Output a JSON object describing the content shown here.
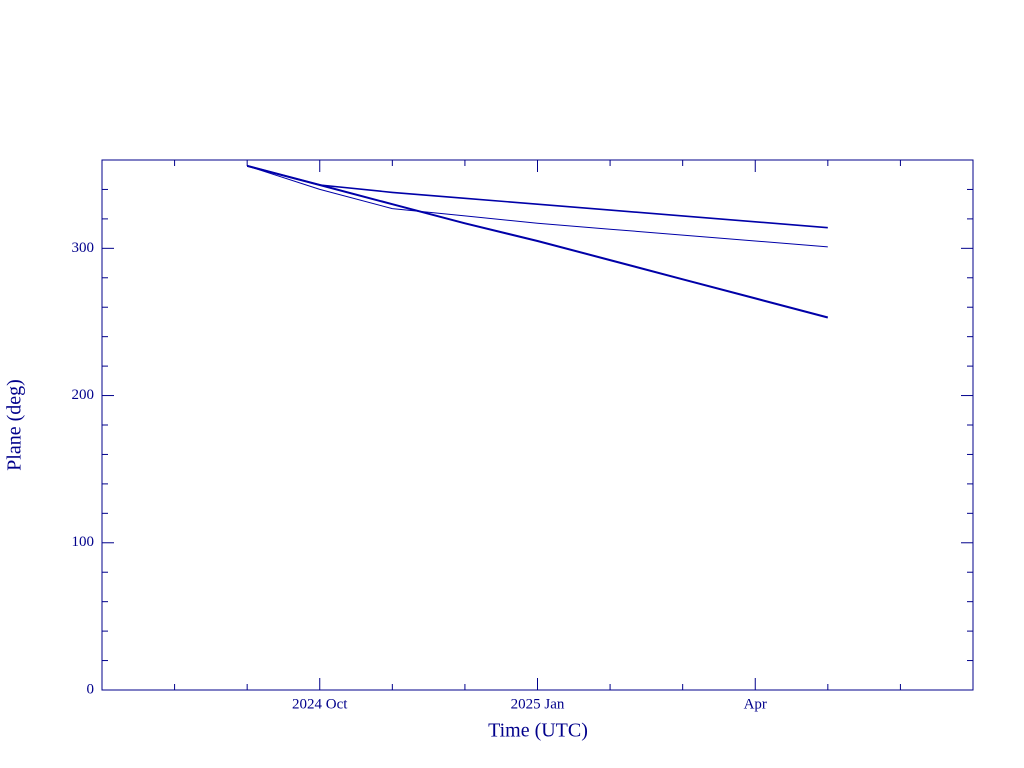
{
  "chart_data": {
    "type": "line",
    "x_label": "Time (UTC)",
    "y_label": "Plane (deg)",
    "x": [
      "2024-09",
      "2024-10",
      "2024-11",
      "2024-12",
      "2025-01",
      "2025-02",
      "2025-03",
      "2025-04",
      "2025-05"
    ],
    "series": [
      {
        "color": "#0000a8",
        "width": 2,
        "values": [
          356,
          343,
          330,
          317,
          305,
          292,
          279,
          266,
          253
        ]
      },
      {
        "color": "#0000a8",
        "width": 1.6,
        "values": [
          356,
          343,
          338,
          334,
          330,
          326,
          322,
          318,
          314
        ]
      },
      {
        "color": "#0000a8",
        "width": 1,
        "values": [
          356,
          340,
          327,
          322,
          317,
          313,
          309,
          305,
          301
        ]
      }
    ],
    "xlim": [
      "2024-07",
      "2025-07"
    ],
    "xticks": [
      {
        "value": "2024-10",
        "label": "2024 Oct"
      },
      {
        "value": "2025-01",
        "label": "2025 Jan"
      },
      {
        "value": "2025-04",
        "label": "Apr"
      }
    ],
    "xminor_ticks": [
      "2024-08",
      "2024-09",
      "2024-11",
      "2024-12",
      "2025-02",
      "2025-03",
      "2025-05",
      "2025-06"
    ],
    "ylim": [
      0,
      360
    ],
    "yticks": [
      0,
      100,
      200,
      300
    ],
    "yminor_ticks": [
      20,
      40,
      60,
      80,
      120,
      140,
      160,
      180,
      220,
      240,
      260,
      280,
      320,
      340
    ],
    "axis_color": "#00008b"
  }
}
